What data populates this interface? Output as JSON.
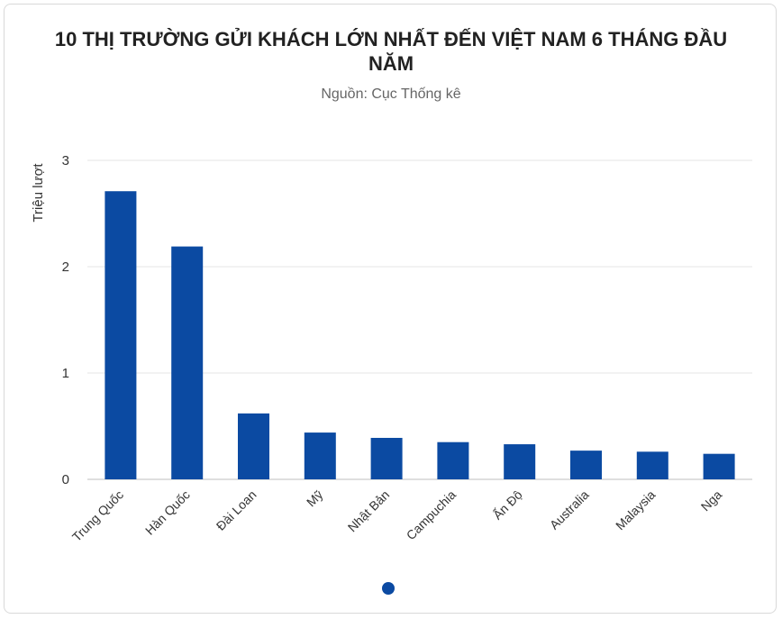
{
  "chart_data": {
    "type": "bar",
    "title": "10 THỊ TRƯỜNG GỬI KHÁCH LỚN NHẤT ĐẾN VIỆT NAM 6 THÁNG ĐẦU NĂM",
    "subtitle": "Nguồn: Cục Thống kê",
    "ylabel": "Triệu lượt",
    "xlabel": "",
    "ylim": [
      0,
      3
    ],
    "yticks": [
      "0",
      "1",
      "2",
      "3"
    ],
    "grid": true,
    "bar_color": "#0b4aa2",
    "categories": [
      "Trung Quốc",
      "Hàn Quốc",
      "Đài Loan",
      "Mỹ",
      "Nhật Bản",
      "Campuchia",
      "Ấn Độ",
      "Australia",
      "Malaysia",
      "Nga"
    ],
    "values": [
      2.71,
      2.19,
      0.62,
      0.44,
      0.39,
      0.35,
      0.33,
      0.27,
      0.26,
      0.24
    ]
  }
}
